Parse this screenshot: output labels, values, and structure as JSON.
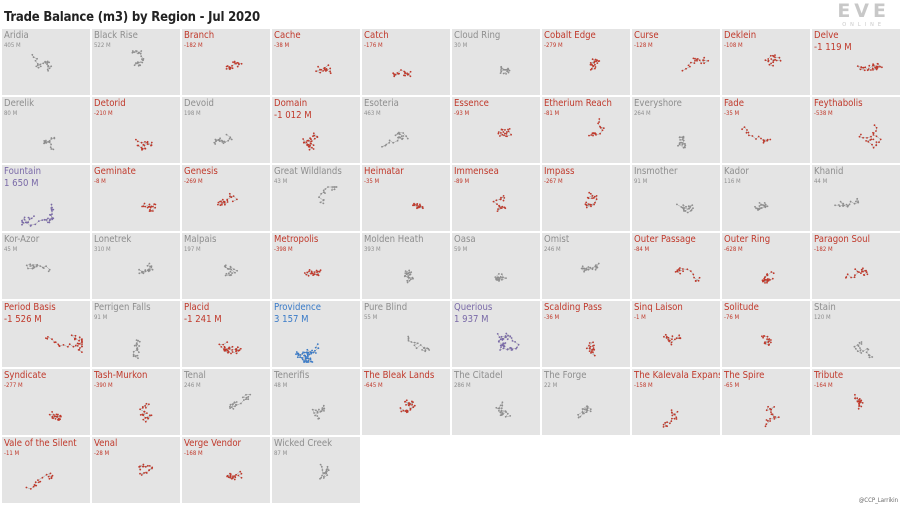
{
  "title": "Trade Balance (m3) by Region - Jul 2020",
  "logo": {
    "main": "EVE",
    "sub": "ONLINE"
  },
  "credit": "@CCP_Larrikin",
  "colors": {
    "negative": "#c0392b",
    "positive": "#8e8e8e",
    "large_positive": "#7a6aa8",
    "max_positive": "#3a7bc8",
    "tile_bg": "#e4e4e4",
    "background": "#ffffff"
  },
  "chart_data": {
    "type": "small-multiples",
    "title": "Trade Balance (m3) by Region - Jul 2020",
    "columns": 10,
    "unit": "M",
    "regions": [
      {
        "name": "Aridia",
        "label": "405 M",
        "value": 405
      },
      {
        "name": "Black Rise",
        "label": "522 M",
        "value": 522
      },
      {
        "name": "Branch",
        "label": "-182 M",
        "value": -182
      },
      {
        "name": "Cache",
        "label": "-38 M",
        "value": -38
      },
      {
        "name": "Catch",
        "label": "-176 M",
        "value": -176
      },
      {
        "name": "Cloud Ring",
        "label": "30 M",
        "value": 30
      },
      {
        "name": "Cobalt Edge",
        "label": "-279 M",
        "value": -279
      },
      {
        "name": "Curse",
        "label": "-128 M",
        "value": -128
      },
      {
        "name": "Deklein",
        "label": "-108 M",
        "value": -108
      },
      {
        "name": "Delve",
        "label": "-1 119 M",
        "value": -1119
      },
      {
        "name": "Derelik",
        "label": "80 M",
        "value": 80
      },
      {
        "name": "Detorid",
        "label": "-210 M",
        "value": -210
      },
      {
        "name": "Devoid",
        "label": "198 M",
        "value": 198
      },
      {
        "name": "Domain",
        "label": "-1 012 M",
        "value": -1012
      },
      {
        "name": "Esoteria",
        "label": "463 M",
        "value": 463
      },
      {
        "name": "Essence",
        "label": "-93 M",
        "value": -93
      },
      {
        "name": "Etherium Reach",
        "label": "-81 M",
        "value": -81
      },
      {
        "name": "Everyshore",
        "label": "264 M",
        "value": 264
      },
      {
        "name": "Fade",
        "label": "-35 M",
        "value": -35
      },
      {
        "name": "Feythabolis",
        "label": "-538 M",
        "value": -538
      },
      {
        "name": "Fountain",
        "label": "1 650 M",
        "value": 1650
      },
      {
        "name": "Geminate",
        "label": "-8 M",
        "value": -8
      },
      {
        "name": "Genesis",
        "label": "-269 M",
        "value": -269
      },
      {
        "name": "Great Wildlands",
        "label": "43 M",
        "value": 43
      },
      {
        "name": "Heimatar",
        "label": "-35 M",
        "value": -35
      },
      {
        "name": "Immensea",
        "label": "-89 M",
        "value": -89
      },
      {
        "name": "Impass",
        "label": "-267 M",
        "value": -267
      },
      {
        "name": "Insmother",
        "label": "91 M",
        "value": 91
      },
      {
        "name": "Kador",
        "label": "116 M",
        "value": 116
      },
      {
        "name": "Khanid",
        "label": "44 M",
        "value": 44
      },
      {
        "name": "Kor-Azor",
        "label": "45 M",
        "value": 45
      },
      {
        "name": "Lonetrek",
        "label": "310 M",
        "value": 310
      },
      {
        "name": "Malpais",
        "label": "197 M",
        "value": 197
      },
      {
        "name": "Metropolis",
        "label": "-398 M",
        "value": -398
      },
      {
        "name": "Molden Heath",
        "label": "393 M",
        "value": 393
      },
      {
        "name": "Oasa",
        "label": "59 M",
        "value": 59
      },
      {
        "name": "Omist",
        "label": "246 M",
        "value": 246
      },
      {
        "name": "Outer Passage",
        "label": "-84 M",
        "value": -84
      },
      {
        "name": "Outer Ring",
        "label": "-628 M",
        "value": -628
      },
      {
        "name": "Paragon Soul",
        "label": "-182 M",
        "value": -182
      },
      {
        "name": "Period Basis",
        "label": "-1 526 M",
        "value": -1526
      },
      {
        "name": "Perrigen Falls",
        "label": "91 M",
        "value": 91
      },
      {
        "name": "Placid",
        "label": "-1 241 M",
        "value": -1241
      },
      {
        "name": "Providence",
        "label": "3 157 M",
        "value": 3157
      },
      {
        "name": "Pure Blind",
        "label": "55 M",
        "value": 55
      },
      {
        "name": "Querious",
        "label": "1 937 M",
        "value": 1937
      },
      {
        "name": "Scalding Pass",
        "label": "-36 M",
        "value": -36
      },
      {
        "name": "Sinq Laison",
        "label": "-1 M",
        "value": -1
      },
      {
        "name": "Solitude",
        "label": "-76 M",
        "value": -76
      },
      {
        "name": "Stain",
        "label": "120 M",
        "value": 120
      },
      {
        "name": "Syndicate",
        "label": "-277 M",
        "value": -277
      },
      {
        "name": "Tash-Murkon",
        "label": "-390 M",
        "value": -390
      },
      {
        "name": "Tenal",
        "label": "246 M",
        "value": 246
      },
      {
        "name": "Tenerifis",
        "label": "48 M",
        "value": 48
      },
      {
        "name": "The Bleak Lands",
        "label": "-645 M",
        "value": -645
      },
      {
        "name": "The Citadel",
        "label": "286 M",
        "value": 286
      },
      {
        "name": "The Forge",
        "label": "22 M",
        "value": 22
      },
      {
        "name": "The Kalevala Expanse",
        "label": "-158 M",
        "value": -158
      },
      {
        "name": "The Spire",
        "label": "-65 M",
        "value": -65
      },
      {
        "name": "Tribute",
        "label": "-164 M",
        "value": -164
      },
      {
        "name": "Vale of the Silent",
        "label": "-11 M",
        "value": -11
      },
      {
        "name": "Venal",
        "label": "-28 M",
        "value": -28
      },
      {
        "name": "Verge Vendor",
        "label": "-168 M",
        "value": -168
      },
      {
        "name": "Wicked Creek",
        "label": "87 M",
        "value": 87
      }
    ]
  }
}
